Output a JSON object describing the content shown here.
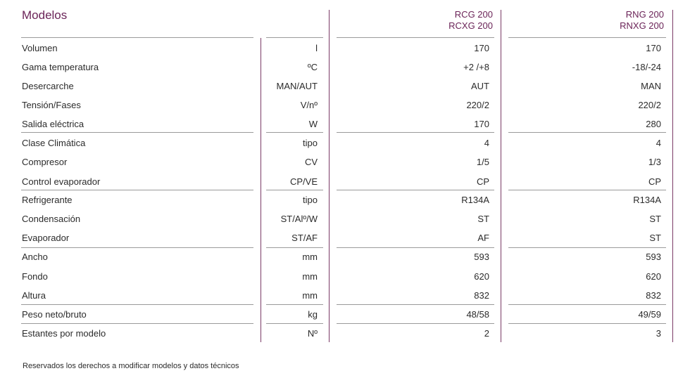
{
  "title": "Modelos",
  "columns": [
    {
      "line1": "RCG 200",
      "line2": "RCXG 200"
    },
    {
      "line1": "RNG 200",
      "line2": "RNXG 200"
    }
  ],
  "rows": [
    {
      "label": "Volumen",
      "unit": "l",
      "v1": "170",
      "v2": "170"
    },
    {
      "label": "Gama temperatura",
      "unit": "ºC",
      "v1": "+2 /+8",
      "v2": "-18/-24"
    },
    {
      "label": "Desercarche",
      "unit": "MAN/AUT",
      "v1": "AUT",
      "v2": "MAN"
    },
    {
      "label": "Tensión/Fases",
      "unit": "V/nº",
      "v1": "220/2",
      "v2": "220/2"
    },
    {
      "label": "Salida eléctrica",
      "unit": "W",
      "v1": "170",
      "v2": "280"
    },
    {
      "label": "Clase Climática",
      "unit": "tipo",
      "v1": "4",
      "v2": "4"
    },
    {
      "label": "Compresor",
      "unit": "CV",
      "v1": "1/5",
      "v2": "1/3"
    },
    {
      "label": "Control evaporador",
      "unit": "CP/VE",
      "v1": "CP",
      "v2": "CP"
    },
    {
      "label": "Refrigerante",
      "unit": "tipo",
      "v1": "R134A",
      "v2": "R134A"
    },
    {
      "label": "Condensación",
      "unit": "ST/Alº/W",
      "v1": "ST",
      "v2": "ST"
    },
    {
      "label": "Evaporador",
      "unit": "ST/AF",
      "v1": "AF",
      "v2": "ST"
    },
    {
      "label": "Ancho",
      "unit": "mm",
      "v1": "593",
      "v2": "593"
    },
    {
      "label": "Fondo",
      "unit": "mm",
      "v1": "620",
      "v2": "620"
    },
    {
      "label": "Altura",
      "unit": "mm",
      "v1": "832",
      "v2": "832"
    },
    {
      "label": "Peso neto/bruto",
      "unit": "kg",
      "v1": "48/58",
      "v2": "49/59"
    },
    {
      "label": "Estantes por modelo",
      "unit": "Nº",
      "v1": "2",
      "v2": "3"
    }
  ],
  "footnote": "Reservados los derechos a modificar modelos y datos técnicos",
  "colors": {
    "accent": "#6b2458",
    "rule": "#9a9a9a"
  }
}
